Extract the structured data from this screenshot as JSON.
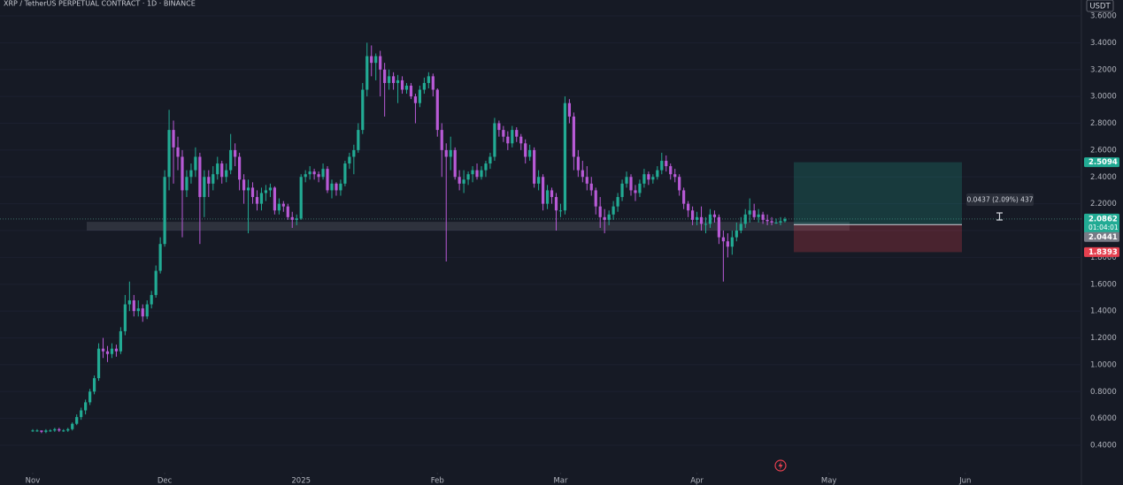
{
  "header": {
    "title": "XRP / TetherUS PERPETUAL CONTRACT · 1D · BINANCE",
    "currency": "USDT"
  },
  "chart_data": {
    "type": "candlestick",
    "up_color": "#22ab94",
    "down_color": "#b85ad6",
    "xlim": [
      -7.44,
      238.4
    ],
    "xticks": [
      {
        "value": 0,
        "label": "Nov"
      },
      {
        "value": 30,
        "label": "Dec"
      },
      {
        "value": 61,
        "label": "2025"
      },
      {
        "value": 92,
        "label": "Feb"
      },
      {
        "value": 120,
        "label": "Mar"
      },
      {
        "value": 151,
        "label": "Apr"
      },
      {
        "value": 181,
        "label": "May"
      },
      {
        "value": 212,
        "label": "Jun"
      }
    ],
    "ylim": [
      0.196,
      3.7185
    ],
    "yticks": [
      {
        "value": 0.4,
        "label": "0.4000"
      },
      {
        "value": 0.6,
        "label": "0.6000"
      },
      {
        "value": 0.8,
        "label": "0.8000"
      },
      {
        "value": 1.0,
        "label": "1.0000"
      },
      {
        "value": 1.2,
        "label": "1.2000"
      },
      {
        "value": 1.4,
        "label": "1.4000"
      },
      {
        "value": 1.6,
        "label": "1.6000"
      },
      {
        "value": 1.8,
        "label": "1.8000"
      },
      {
        "value": 2.0,
        "label": "2.0000"
      },
      {
        "value": 2.2,
        "label": "2.2000"
      },
      {
        "value": 2.4,
        "label": "2.4000"
      },
      {
        "value": 2.6,
        "label": "2.6000"
      },
      {
        "value": 2.8,
        "label": "2.8000"
      },
      {
        "value": 3.0,
        "label": "3.0000"
      },
      {
        "value": 3.2,
        "label": "3.2000"
      },
      {
        "value": 3.4,
        "label": "3.4000"
      },
      {
        "value": 3.6,
        "label": "3.6000"
      }
    ],
    "last_price": 2.0862,
    "countdown": "01:04:01",
    "position": {
      "target": 2.5094,
      "entry": 2.0441,
      "stop": 1.8393,
      "target_color": "#22ab94",
      "stop_color": "#e5404f"
    },
    "measure_label": "0.0437 (2.09%) 437",
    "support_zone": [
      2.0,
      2.065
    ],
    "ohlc": [
      [
        0.51,
        0.52,
        0.5,
        0.51
      ],
      [
        0.51,
        0.52,
        0.5,
        0.51
      ],
      [
        0.51,
        0.51,
        0.49,
        0.5
      ],
      [
        0.5,
        0.52,
        0.49,
        0.51
      ],
      [
        0.51,
        0.52,
        0.5,
        0.51
      ],
      [
        0.51,
        0.53,
        0.5,
        0.52
      ],
      [
        0.52,
        0.53,
        0.5,
        0.51
      ],
      [
        0.51,
        0.52,
        0.5,
        0.51
      ],
      [
        0.51,
        0.53,
        0.5,
        0.52
      ],
      [
        0.52,
        0.57,
        0.51,
        0.56
      ],
      [
        0.56,
        0.63,
        0.55,
        0.61
      ],
      [
        0.61,
        0.68,
        0.59,
        0.66
      ],
      [
        0.66,
        0.74,
        0.63,
        0.72
      ],
      [
        0.72,
        0.82,
        0.7,
        0.8
      ],
      [
        0.8,
        0.92,
        0.78,
        0.9
      ],
      [
        0.9,
        1.16,
        0.88,
        1.12
      ],
      [
        1.12,
        1.2,
        1.05,
        1.1
      ],
      [
        1.1,
        1.14,
        1.02,
        1.08
      ],
      [
        1.08,
        1.16,
        1.05,
        1.12
      ],
      [
        1.12,
        1.15,
        1.06,
        1.1
      ],
      [
        1.1,
        1.28,
        1.08,
        1.25
      ],
      [
        1.25,
        1.52,
        1.22,
        1.45
      ],
      [
        1.45,
        1.62,
        1.4,
        1.48
      ],
      [
        1.48,
        1.52,
        1.36,
        1.4
      ],
      [
        1.4,
        1.48,
        1.36,
        1.42
      ],
      [
        1.42,
        1.45,
        1.32,
        1.36
      ],
      [
        1.36,
        1.48,
        1.34,
        1.45
      ],
      [
        1.45,
        1.55,
        1.42,
        1.52
      ],
      [
        1.52,
        1.74,
        1.5,
        1.7
      ],
      [
        1.7,
        1.95,
        1.68,
        1.9
      ],
      [
        1.9,
        2.45,
        1.88,
        2.4
      ],
      [
        2.4,
        2.9,
        2.3,
        2.75
      ],
      [
        2.75,
        2.82,
        2.35,
        2.62
      ],
      [
        2.62,
        2.7,
        2.45,
        2.55
      ],
      [
        2.55,
        2.6,
        1.95,
        2.3
      ],
      [
        2.3,
        2.45,
        2.25,
        2.4
      ],
      [
        2.4,
        2.5,
        2.35,
        2.45
      ],
      [
        2.45,
        2.62,
        2.4,
        2.55
      ],
      [
        2.55,
        2.58,
        1.9,
        2.25
      ],
      [
        2.25,
        2.45,
        2.1,
        2.4
      ],
      [
        2.4,
        2.45,
        2.25,
        2.35
      ],
      [
        2.35,
        2.48,
        2.3,
        2.42
      ],
      [
        2.42,
        2.55,
        2.38,
        2.5
      ],
      [
        2.5,
        2.52,
        2.35,
        2.4
      ],
      [
        2.4,
        2.5,
        2.36,
        2.45
      ],
      [
        2.45,
        2.72,
        2.42,
        2.6
      ],
      [
        2.6,
        2.65,
        2.48,
        2.55
      ],
      [
        2.55,
        2.58,
        2.3,
        2.38
      ],
      [
        2.38,
        2.42,
        2.2,
        2.3
      ],
      [
        2.3,
        2.38,
        1.98,
        2.32
      ],
      [
        2.32,
        2.36,
        2.2,
        2.25
      ],
      [
        2.25,
        2.3,
        2.15,
        2.2
      ],
      [
        2.2,
        2.32,
        2.15,
        2.28
      ],
      [
        2.28,
        2.34,
        2.22,
        2.3
      ],
      [
        2.3,
        2.35,
        2.25,
        2.32
      ],
      [
        2.32,
        2.33,
        2.12,
        2.15
      ],
      [
        2.15,
        2.24,
        2.12,
        2.2
      ],
      [
        2.2,
        2.22,
        2.14,
        2.18
      ],
      [
        2.18,
        2.2,
        2.08,
        2.1
      ],
      [
        2.1,
        2.14,
        2.02,
        2.08
      ],
      [
        2.08,
        2.12,
        2.04,
        2.09
      ],
      [
        2.09,
        2.42,
        2.08,
        2.4
      ],
      [
        2.4,
        2.45,
        2.36,
        2.42
      ],
      [
        2.42,
        2.48,
        2.38,
        2.44
      ],
      [
        2.44,
        2.46,
        2.38,
        2.42
      ],
      [
        2.42,
        2.44,
        2.36,
        2.4
      ],
      [
        2.4,
        2.5,
        2.38,
        2.46
      ],
      [
        2.46,
        2.48,
        2.28,
        2.3
      ],
      [
        2.3,
        2.38,
        2.24,
        2.35
      ],
      [
        2.35,
        2.36,
        2.26,
        2.3
      ],
      [
        2.3,
        2.38,
        2.26,
        2.35
      ],
      [
        2.35,
        2.52,
        2.33,
        2.5
      ],
      [
        2.5,
        2.58,
        2.46,
        2.55
      ],
      [
        2.55,
        2.64,
        2.42,
        2.6
      ],
      [
        2.6,
        2.8,
        2.58,
        2.75
      ],
      [
        2.75,
        3.1,
        2.72,
        3.05
      ],
      [
        3.05,
        3.4,
        3.0,
        3.3
      ],
      [
        3.3,
        3.38,
        3.15,
        3.25
      ],
      [
        3.25,
        3.32,
        3.12,
        3.3
      ],
      [
        3.3,
        3.34,
        3.0,
        3.2
      ],
      [
        3.2,
        3.25,
        2.85,
        3.1
      ],
      [
        3.1,
        3.2,
        3.05,
        3.15
      ],
      [
        3.15,
        3.18,
        3.05,
        3.1
      ],
      [
        3.1,
        3.16,
        2.95,
        3.12
      ],
      [
        3.12,
        3.15,
        3.02,
        3.05
      ],
      [
        3.05,
        3.1,
        3.02,
        3.08
      ],
      [
        3.08,
        3.1,
        2.98,
        3.0
      ],
      [
        3.0,
        3.02,
        2.8,
        2.95
      ],
      [
        2.95,
        3.08,
        2.92,
        3.05
      ],
      [
        3.05,
        3.14,
        3.02,
        3.1
      ],
      [
        3.1,
        3.18,
        3.06,
        3.15
      ],
      [
        3.15,
        3.17,
        3.0,
        3.05
      ],
      [
        3.05,
        3.06,
        2.7,
        2.75
      ],
      [
        2.75,
        2.8,
        2.4,
        2.6
      ],
      [
        2.6,
        2.65,
        1.77,
        2.55
      ],
      [
        2.55,
        2.7,
        2.45,
        2.6
      ],
      [
        2.6,
        2.62,
        2.38,
        2.4
      ],
      [
        2.4,
        2.45,
        2.3,
        2.35
      ],
      [
        2.35,
        2.45,
        2.28,
        2.38
      ],
      [
        2.38,
        2.44,
        2.34,
        2.42
      ],
      [
        2.42,
        2.48,
        2.36,
        2.45
      ],
      [
        2.45,
        2.5,
        2.38,
        2.4
      ],
      [
        2.4,
        2.48,
        2.38,
        2.45
      ],
      [
        2.45,
        2.52,
        2.4,
        2.5
      ],
      [
        2.5,
        2.58,
        2.46,
        2.55
      ],
      [
        2.55,
        2.84,
        2.52,
        2.8
      ],
      [
        2.8,
        2.82,
        2.7,
        2.75
      ],
      [
        2.75,
        2.78,
        2.66,
        2.7
      ],
      [
        2.7,
        2.74,
        2.6,
        2.65
      ],
      [
        2.65,
        2.78,
        2.62,
        2.75
      ],
      [
        2.75,
        2.77,
        2.66,
        2.7
      ],
      [
        2.7,
        2.72,
        2.6,
        2.65
      ],
      [
        2.65,
        2.68,
        2.5,
        2.55
      ],
      [
        2.55,
        2.64,
        2.52,
        2.6
      ],
      [
        2.6,
        2.62,
        2.32,
        2.35
      ],
      [
        2.35,
        2.45,
        2.3,
        2.4
      ],
      [
        2.4,
        2.42,
        2.15,
        2.2
      ],
      [
        2.2,
        2.34,
        2.16,
        2.3
      ],
      [
        2.3,
        2.32,
        2.2,
        2.25
      ],
      [
        2.25,
        2.28,
        2.0,
        2.15
      ],
      [
        2.15,
        2.2,
        2.1,
        2.15
      ],
      [
        2.15,
        3.0,
        2.12,
        2.95
      ],
      [
        2.95,
        2.98,
        2.8,
        2.85
      ],
      [
        2.85,
        2.88,
        2.45,
        2.55
      ],
      [
        2.55,
        2.6,
        2.4,
        2.45
      ],
      [
        2.45,
        2.52,
        2.36,
        2.4
      ],
      [
        2.4,
        2.48,
        2.3,
        2.35
      ],
      [
        2.35,
        2.4,
        2.26,
        2.3
      ],
      [
        2.3,
        2.32,
        2.12,
        2.18
      ],
      [
        2.18,
        2.25,
        2.02,
        2.1
      ],
      [
        2.1,
        2.16,
        1.98,
        2.08
      ],
      [
        2.08,
        2.15,
        2.04,
        2.12
      ],
      [
        2.12,
        2.22,
        2.08,
        2.18
      ],
      [
        2.18,
        2.28,
        2.14,
        2.25
      ],
      [
        2.25,
        2.38,
        2.22,
        2.35
      ],
      [
        2.35,
        2.44,
        2.32,
        2.4
      ],
      [
        2.4,
        2.42,
        2.26,
        2.3
      ],
      [
        2.3,
        2.34,
        2.22,
        2.28
      ],
      [
        2.28,
        2.38,
        2.25,
        2.35
      ],
      [
        2.35,
        2.46,
        2.32,
        2.42
      ],
      [
        2.42,
        2.44,
        2.34,
        2.38
      ],
      [
        2.38,
        2.42,
        2.35,
        2.4
      ],
      [
        2.4,
        2.48,
        2.38,
        2.45
      ],
      [
        2.45,
        2.58,
        2.42,
        2.52
      ],
      [
        2.52,
        2.56,
        2.44,
        2.48
      ],
      [
        2.48,
        2.5,
        2.38,
        2.42
      ],
      [
        2.42,
        2.46,
        2.36,
        2.4
      ],
      [
        2.4,
        2.42,
        2.26,
        2.3
      ],
      [
        2.3,
        2.32,
        2.16,
        2.2
      ],
      [
        2.2,
        2.22,
        2.1,
        2.15
      ],
      [
        2.15,
        2.18,
        2.04,
        2.08
      ],
      [
        2.08,
        2.14,
        2.04,
        2.1
      ],
      [
        2.1,
        2.18,
        2.0,
        2.05
      ],
      [
        2.05,
        2.1,
        1.98,
        2.05
      ],
      [
        2.05,
        2.16,
        2.02,
        2.12
      ],
      [
        2.12,
        2.15,
        2.06,
        2.1
      ],
      [
        2.1,
        2.12,
        1.9,
        1.95
      ],
      [
        1.95,
        2.0,
        1.62,
        1.92
      ],
      [
        1.92,
        1.98,
        1.8,
        1.88
      ],
      [
        1.88,
        2.0,
        1.82,
        1.95
      ],
      [
        1.95,
        2.06,
        1.92,
        2.0
      ],
      [
        2.0,
        2.1,
        1.98,
        2.05
      ],
      [
        2.05,
        2.16,
        2.02,
        2.12
      ],
      [
        2.12,
        2.24,
        2.06,
        2.15
      ],
      [
        2.15,
        2.2,
        2.08,
        2.1
      ],
      [
        2.1,
        2.16,
        2.06,
        2.12
      ],
      [
        2.12,
        2.14,
        2.05,
        2.08
      ],
      [
        2.08,
        2.12,
        2.04,
        2.07
      ],
      [
        2.07,
        2.1,
        2.04,
        2.06
      ],
      [
        2.06,
        2.09,
        2.05,
        2.06
      ],
      [
        2.06,
        2.1,
        2.04,
        2.07
      ],
      [
        2.07,
        2.1,
        2.06,
        2.0862
      ]
    ]
  }
}
